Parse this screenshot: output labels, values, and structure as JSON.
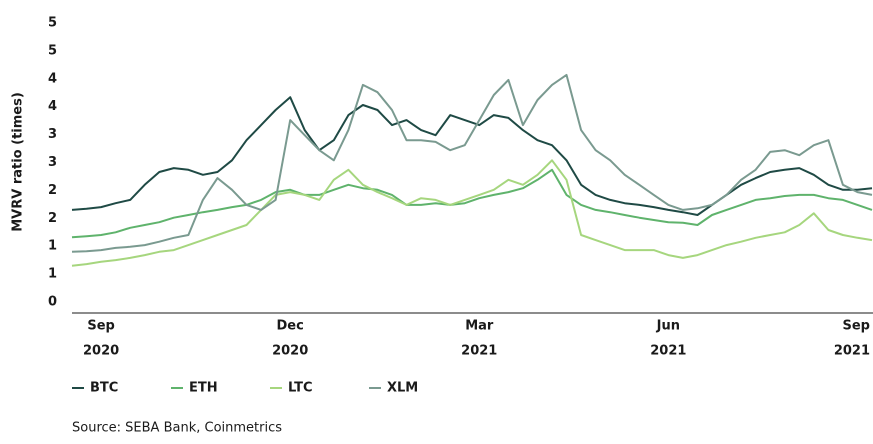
{
  "chart_data": {
    "type": "line",
    "y_label": "MVRV ratio (times)",
    "source": "Source: SEBA Bank, Coinmetrics",
    "ylim": [
      0,
      5
    ],
    "yticks": [
      0,
      {
        "value": 0.5,
        "label": "1"
      },
      1,
      {
        "value": 1.5,
        "label": "2"
      },
      2,
      {
        "value": 2.5,
        "label": "3"
      },
      3,
      {
        "value": 3.5,
        "label": "4"
      },
      4,
      {
        "value": 4.5,
        "label": "5"
      },
      5
    ],
    "categories": [
      null,
      null,
      [
        "Sep",
        "2020"
      ],
      null,
      null,
      null,
      null,
      null,
      null,
      null,
      null,
      null,
      null,
      null,
      null,
      [
        "Dec",
        "2020"
      ],
      null,
      null,
      null,
      null,
      null,
      null,
      null,
      null,
      null,
      null,
      null,
      null,
      [
        "Mar",
        "2021"
      ],
      null,
      null,
      null,
      null,
      null,
      null,
      null,
      null,
      null,
      null,
      null,
      null,
      [
        "Jun",
        "2021"
      ],
      null,
      null,
      null,
      null,
      null,
      null,
      null,
      null,
      null,
      null,
      null,
      null,
      [
        "Sep",
        "2021"
      ],
      null
    ],
    "series": [
      {
        "name": "BTC",
        "color": "#1f4a45",
        "values": [
          1.65,
          1.67,
          1.7,
          1.77,
          1.83,
          2.1,
          2.33,
          2.4,
          2.37,
          2.28,
          2.33,
          2.54,
          2.9,
          3.17,
          3.44,
          3.67,
          3.08,
          2.72,
          2.9,
          3.35,
          3.53,
          3.44,
          3.17,
          3.26,
          3.08,
          2.99,
          3.35,
          3.26,
          3.17,
          3.35,
          3.3,
          3.08,
          2.9,
          2.81,
          2.54,
          2.1,
          1.92,
          1.83,
          1.77,
          1.74,
          1.7,
          1.65,
          1.61,
          1.56,
          1.74,
          1.92,
          2.1,
          2.22,
          2.33,
          2.37,
          2.4,
          2.28,
          2.1,
          2.01,
          2.01,
          2.04
        ]
      },
      {
        "name": "ETH",
        "color": "#5fb36c",
        "values": [
          1.16,
          1.18,
          1.2,
          1.25,
          1.33,
          1.38,
          1.43,
          1.51,
          1.56,
          1.61,
          1.65,
          1.7,
          1.74,
          1.83,
          1.97,
          2.01,
          1.92,
          1.92,
          2.01,
          2.1,
          2.04,
          2.01,
          1.92,
          1.74,
          1.74,
          1.77,
          1.74,
          1.77,
          1.86,
          1.92,
          1.97,
          2.04,
          2.19,
          2.37,
          1.92,
          1.74,
          1.65,
          1.61,
          1.56,
          1.51,
          1.47,
          1.43,
          1.42,
          1.38,
          1.56,
          1.65,
          1.74,
          1.83,
          1.86,
          1.9,
          1.92,
          1.92,
          1.86,
          1.83,
          1.74,
          1.65
        ]
      },
      {
        "name": "LTC",
        "color": "#a6d67e",
        "values": [
          0.65,
          0.68,
          0.72,
          0.75,
          0.79,
          0.84,
          0.9,
          0.93,
          1.02,
          1.11,
          1.2,
          1.29,
          1.38,
          1.65,
          1.92,
          1.97,
          1.92,
          1.83,
          2.19,
          2.37,
          2.1,
          1.97,
          1.86,
          1.74,
          1.86,
          1.83,
          1.74,
          1.83,
          1.92,
          2.01,
          2.19,
          2.1,
          2.28,
          2.54,
          2.19,
          1.2,
          1.11,
          1.02,
          0.93,
          0.93,
          0.93,
          0.84,
          0.79,
          0.84,
          0.93,
          1.02,
          1.08,
          1.15,
          1.2,
          1.25,
          1.38,
          1.59,
          1.29,
          1.2,
          1.15,
          1.11
        ]
      },
      {
        "name": "XLM",
        "color": "#7a9a90",
        "values": [
          0.9,
          0.91,
          0.93,
          0.97,
          0.99,
          1.02,
          1.08,
          1.15,
          1.2,
          1.83,
          2.22,
          2.01,
          1.74,
          1.65,
          1.83,
          3.26,
          2.99,
          2.72,
          2.54,
          3.08,
          3.89,
          3.76,
          3.44,
          2.9,
          2.9,
          2.87,
          2.72,
          2.81,
          3.26,
          3.71,
          3.98,
          3.17,
          3.62,
          3.89,
          4.07,
          3.08,
          2.72,
          2.54,
          2.28,
          2.1,
          1.92,
          1.74,
          1.65,
          1.68,
          1.74,
          1.92,
          2.19,
          2.37,
          2.69,
          2.72,
          2.63,
          2.81,
          2.9,
          2.1,
          1.97,
          1.92
        ]
      }
    ]
  }
}
